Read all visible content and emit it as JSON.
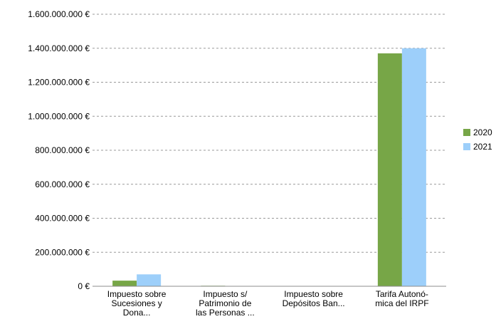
{
  "chart_data": {
    "type": "bar",
    "title": "",
    "xlabel": "",
    "ylabel": "",
    "categories": [
      [
        "Impuesto sobre",
        "Sucesiones y",
        "Dona..."
      ],
      [
        "Impuesto s/",
        "Patrimonio de",
        "las Personas ..."
      ],
      [
        "Impuesto sobre",
        "Depósitos Ban..."
      ],
      [
        "Tarifa Autonó-",
        "mica del IRPF"
      ]
    ],
    "series": [
      {
        "name": "2020",
        "color": "#77A647",
        "values": [
          33000000,
          3000000,
          0,
          1370000000
        ]
      },
      {
        "name": "2021",
        "color": "#9DCFFA",
        "values": [
          70000000,
          2000000,
          0,
          1400000000
        ]
      }
    ],
    "ylim": [
      0,
      1600000000
    ],
    "yticks": [
      0,
      200000000,
      400000000,
      600000000,
      800000000,
      1000000000,
      1200000000,
      1400000000,
      1600000000
    ],
    "ytick_labels": [
      "0 €",
      "200.000.000 €",
      "400.000.000 €",
      "600.000.000 €",
      "800.000.000 €",
      "1.000.000.000 €",
      "1.200.000.000 €",
      "1.400.000.000 €",
      "1.600.000.000 €"
    ],
    "grid": true,
    "legend_position": "right"
  }
}
